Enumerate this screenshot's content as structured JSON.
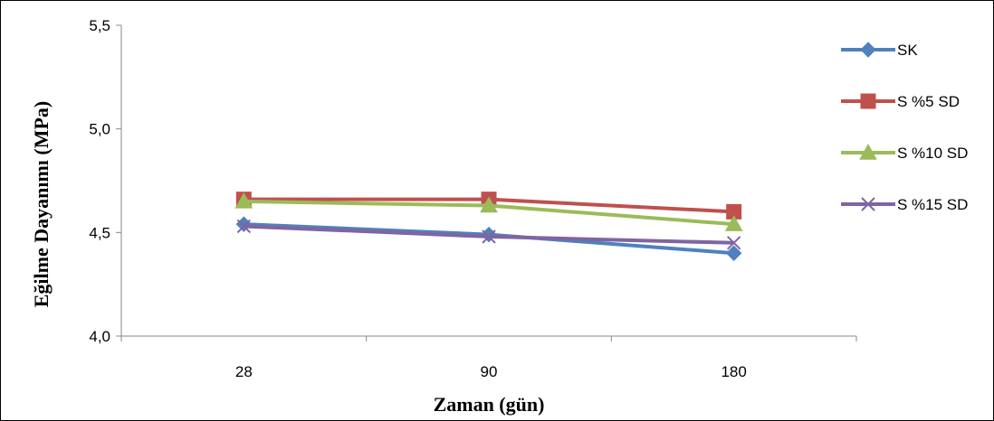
{
  "chart_data": {
    "type": "line",
    "categories": [
      "28",
      "90",
      "180"
    ],
    "xlabel": "Zaman (gün)",
    "ylabel": "Eğilme Dayanımı (MPa)",
    "ylim": [
      4.0,
      5.5
    ],
    "yticks": [
      "4,0",
      "4,5",
      "5,0",
      "5,5"
    ],
    "ytick_values": [
      4.0,
      4.5,
      5.0,
      5.5
    ],
    "grid": false,
    "legend_position": "right",
    "series": [
      {
        "name": "SK",
        "values": [
          4.54,
          4.49,
          4.4
        ],
        "color": "#4F81BD",
        "marker": "diamond"
      },
      {
        "name": "S %5 SD",
        "values": [
          4.66,
          4.66,
          4.6
        ],
        "color": "#C0504D",
        "marker": "square"
      },
      {
        "name": "S %10 SD",
        "values": [
          4.65,
          4.63,
          4.54
        ],
        "color": "#9BBB59",
        "marker": "triangle"
      },
      {
        "name": "S %15 SD",
        "values": [
          4.53,
          4.48,
          4.45
        ],
        "color": "#8064A2",
        "marker": "x"
      }
    ]
  }
}
